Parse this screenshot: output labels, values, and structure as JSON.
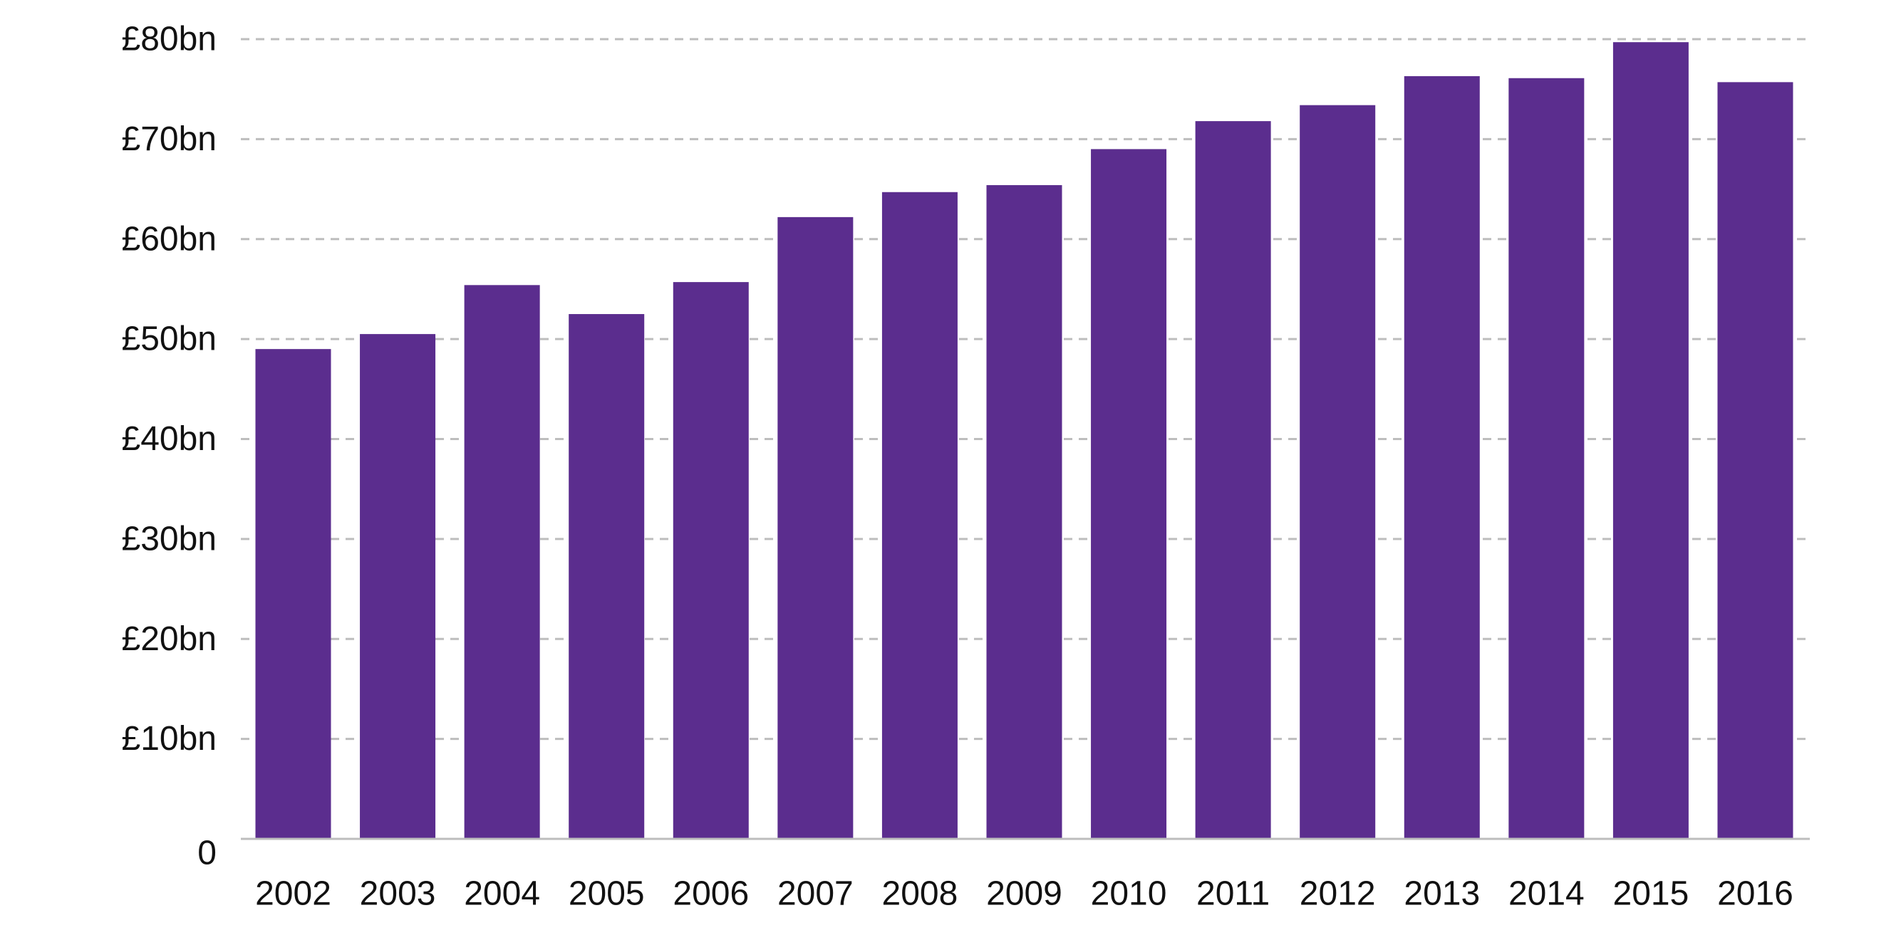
{
  "chart_data": {
    "type": "bar",
    "categories": [
      "2002",
      "2003",
      "2004",
      "2005",
      "2006",
      "2007",
      "2008",
      "2009",
      "2010",
      "2011",
      "2012",
      "2013",
      "2014",
      "2015",
      "2016"
    ],
    "values": [
      49,
      50.5,
      55.4,
      52.5,
      55.7,
      62.2,
      64.7,
      65.4,
      69,
      71.8,
      73.4,
      76.3,
      76.1,
      79.7,
      75.7
    ],
    "ylim": [
      0,
      80
    ],
    "yticks": [
      0,
      10,
      20,
      30,
      40,
      50,
      60,
      70,
      80
    ],
    "ytick_labels": [
      "0",
      "£10bn",
      "£20bn",
      "£30bn",
      "£40bn",
      "£50bn",
      "£60bn",
      "£70bn",
      "£80bn"
    ],
    "grid": true,
    "bar_color": "#5b2d8e",
    "grid_color": "#bdbdbd"
  }
}
